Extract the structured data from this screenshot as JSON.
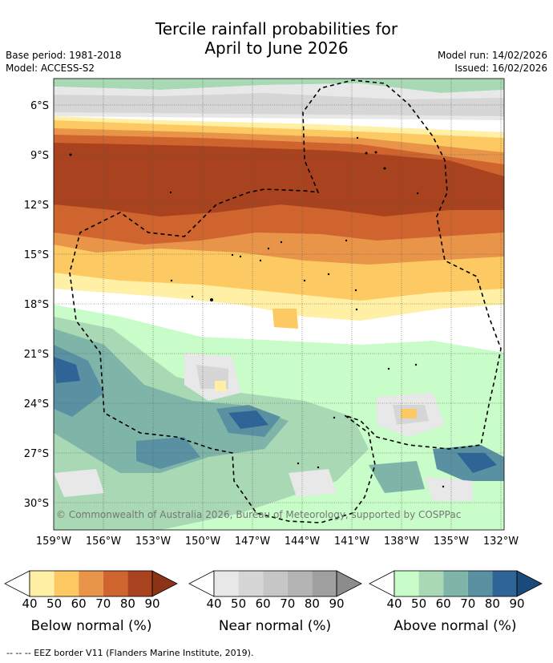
{
  "title_line1": "Tercile rainfall probabilities for",
  "title_line2": "April to June 2026",
  "meta": {
    "base_period": "Base period: 1981-2018",
    "model": "Model: ACCESS-S2",
    "model_run": "Model run: 14/02/2026",
    "issued": "Issued: 16/02/2026"
  },
  "copyright": "© Commonwealth of Australia 2026, Bureau of Meteorology, supported by COSPPac",
  "lat_labels": [
    "6°S",
    "9°S",
    "12°S",
    "15°S",
    "18°S",
    "21°S",
    "24°S",
    "27°S",
    "30°S"
  ],
  "lon_labels": [
    "159°W",
    "156°W",
    "153°W",
    "150°W",
    "147°W",
    "144°W",
    "141°W",
    "138°W",
    "135°W",
    "132°W"
  ],
  "colorbars": [
    {
      "name": "below",
      "label": "Below normal (%)",
      "ticks": [
        "40",
        "50",
        "60",
        "70",
        "80",
        "90"
      ],
      "colors": [
        "#fff0a6",
        "#fdc962",
        "#e8954a",
        "#d0642e",
        "#a9431f"
      ],
      "under": "#ffffff",
      "over": "#8c3418"
    },
    {
      "name": "near",
      "label": "Near normal (%)",
      "ticks": [
        "40",
        "50",
        "60",
        "70",
        "80",
        "90"
      ],
      "colors": [
        "#e8e8e8",
        "#d6d6d6",
        "#c6c6c6",
        "#b4b4b4",
        "#a0a0a0"
      ],
      "under": "#ffffff",
      "over": "#8c8c8c"
    },
    {
      "name": "above",
      "label": "Above normal (%)",
      "ticks": [
        "40",
        "50",
        "60",
        "70",
        "80",
        "90"
      ],
      "colors": [
        "#c8fcc8",
        "#a8d8b4",
        "#7fb4a8",
        "#5a91a2",
        "#2f6496"
      ],
      "under": "#ffffff",
      "over": "#1a4a7a"
    }
  ],
  "footer": "--  --  -- EEZ border V11 (Flanders Marine Institute, 2019)."
}
